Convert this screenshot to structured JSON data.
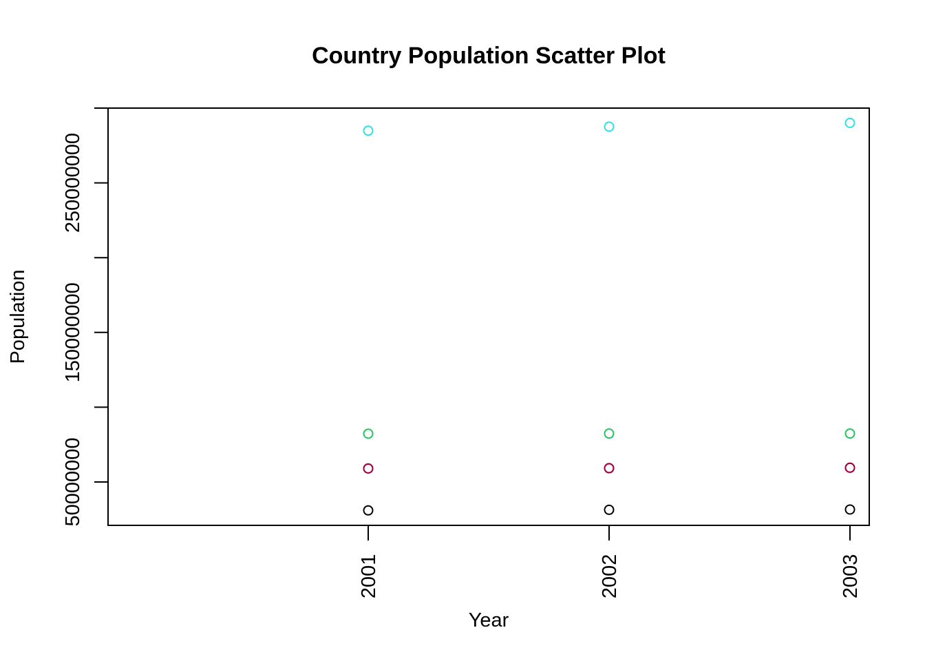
{
  "chart_data": {
    "type": "scatter",
    "title": "Country Population Scatter Plot",
    "xlabel": "Year",
    "ylabel": "Population",
    "x": [
      2001,
      2002,
      2003
    ],
    "x_tick_labels": [
      "2001",
      "2002",
      "2003"
    ],
    "y_tick_values": [
      50000000,
      100000000,
      150000000,
      200000000,
      250000000,
      300000000
    ],
    "y_tick_labels": [
      "50000000",
      "",
      "150000000",
      "",
      "250000000",
      ""
    ],
    "xlim": [
      1999.92,
      2003.08
    ],
    "ylim": [
      21000000,
      300000000
    ],
    "grid": false,
    "legend": "none",
    "series": [
      {
        "color": "#000000",
        "values": [
          31000000,
          31400000,
          31600000
        ]
      },
      {
        "color": "#DF536B",
        "values": [
          59100000,
          59300000,
          59600000
        ]
      },
      {
        "color": "#9E0142",
        "values": [
          59000000,
          59200000,
          59500000
        ]
      },
      {
        "color": "#22C55E",
        "values": [
          82300000,
          82400000,
          82400000
        ]
      },
      {
        "color": "#28E2E5",
        "values": [
          284900000,
          287600000,
          290100000
        ]
      }
    ]
  }
}
